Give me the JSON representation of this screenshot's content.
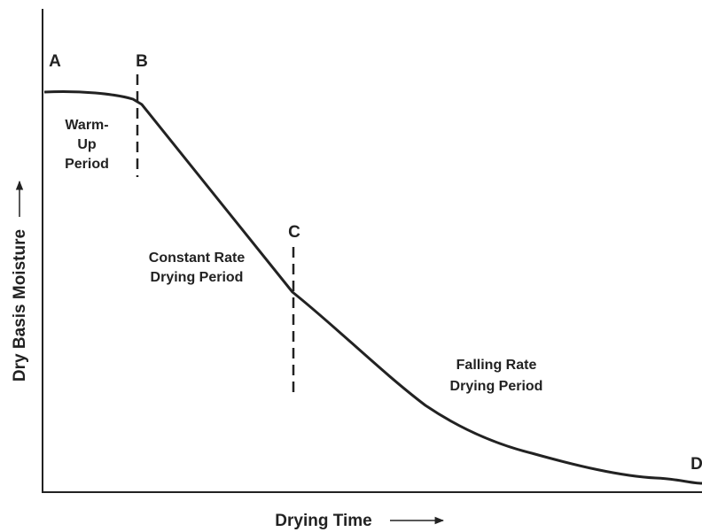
{
  "points": [
    "A",
    "B",
    "C",
    "D"
  ],
  "regions": [
    {
      "lines": [
        "Warm-",
        "Up",
        "Period"
      ]
    },
    {
      "lines": [
        "Constant Rate",
        "Drying Period"
      ]
    },
    {
      "lines": [
        "Falling Rate",
        "Drying Period"
      ]
    }
  ],
  "axes": {
    "y_label": "Dry Basis Moisture",
    "x_label": "Drying Time"
  }
}
